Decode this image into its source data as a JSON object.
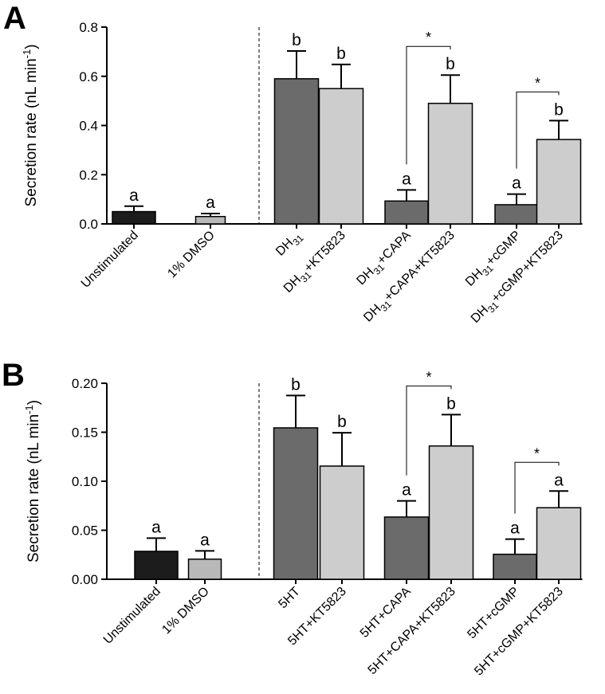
{
  "chart_data": [
    {
      "type": "bar",
      "panel": "A",
      "ylabel": "Secretion rate (nL min",
      "ylabel_sup": "-1",
      "ylabel_end": ")",
      "ylim": [
        0,
        0.8
      ],
      "yticks": [
        "0.0",
        "0.2",
        "0.4",
        "0.6",
        "0.8"
      ],
      "categories": [
        {
          "base": "Unstimulated"
        },
        {
          "base": "1% DMSO"
        },
        {
          "base": "DH",
          "sub": "31",
          "rest": ""
        },
        {
          "base": "DH",
          "sub": "31",
          "rest": "+KT5823"
        },
        {
          "base": "DH",
          "sub": "31",
          "rest": "+CAPA"
        },
        {
          "base": "DH",
          "sub": "31",
          "rest": "+CAPA+KT5823"
        },
        {
          "base": "DH",
          "sub": "31",
          "rest": "+cGMP"
        },
        {
          "base": "DH",
          "sub": "31",
          "rest": "+cGMP+KT5823"
        }
      ],
      "values": [
        0.05,
        0.03,
        0.59,
        0.55,
        0.093,
        0.49,
        0.078,
        0.343
      ],
      "errors": [
        0.022,
        0.012,
        0.113,
        0.098,
        0.045,
        0.115,
        0.043,
        0.077
      ],
      "colors": [
        "#1c1c1c",
        "#b8b8b8",
        "#6b6b6b",
        "#cdcdcd",
        "#6b6b6b",
        "#cdcdcd",
        "#6b6b6b",
        "#cdcdcd"
      ],
      "letters": [
        "a",
        "a",
        "b",
        "b",
        "a",
        "b",
        "a",
        "b"
      ],
      "significance": [
        {
          "pair": [
            4,
            5
          ],
          "label": "*"
        },
        {
          "pair": [
            6,
            7
          ],
          "label": "*"
        }
      ],
      "divider_after_index": 1
    },
    {
      "type": "bar",
      "panel": "B",
      "ylabel": "Secretion rate (nL min",
      "ylabel_sup": "-1",
      "ylabel_end": ")",
      "ylim": [
        0,
        0.2
      ],
      "yticks": [
        "0.00",
        "0.05",
        "0.10",
        "0.15",
        "0.20"
      ],
      "categories": [
        {
          "base": "Unstimulated"
        },
        {
          "base": "1% DMSO"
        },
        {
          "base": "5HT"
        },
        {
          "base": "5HT+KT5823"
        },
        {
          "base": "5HT+CAPA"
        },
        {
          "base": "5HT+CAPA+KT5823"
        },
        {
          "base": "5HT+cGMP"
        },
        {
          "base": "5HT+cGMP+KT5823"
        }
      ],
      "values": [
        0.0285,
        0.0205,
        0.1545,
        0.1155,
        0.0635,
        0.136,
        0.0255,
        0.073
      ],
      "errors": [
        0.0135,
        0.0085,
        0.033,
        0.034,
        0.0165,
        0.032,
        0.0155,
        0.017
      ],
      "colors": [
        "#1c1c1c",
        "#b8b8b8",
        "#6b6b6b",
        "#cdcdcd",
        "#6b6b6b",
        "#cdcdcd",
        "#6b6b6b",
        "#cdcdcd"
      ],
      "letters": [
        "a",
        "a",
        "b",
        "b",
        "a",
        "b",
        "a",
        "a"
      ],
      "significance": [
        {
          "pair": [
            4,
            5
          ],
          "label": "*"
        },
        {
          "pair": [
            6,
            7
          ],
          "label": "*"
        }
      ],
      "divider_after_index": 1
    }
  ]
}
